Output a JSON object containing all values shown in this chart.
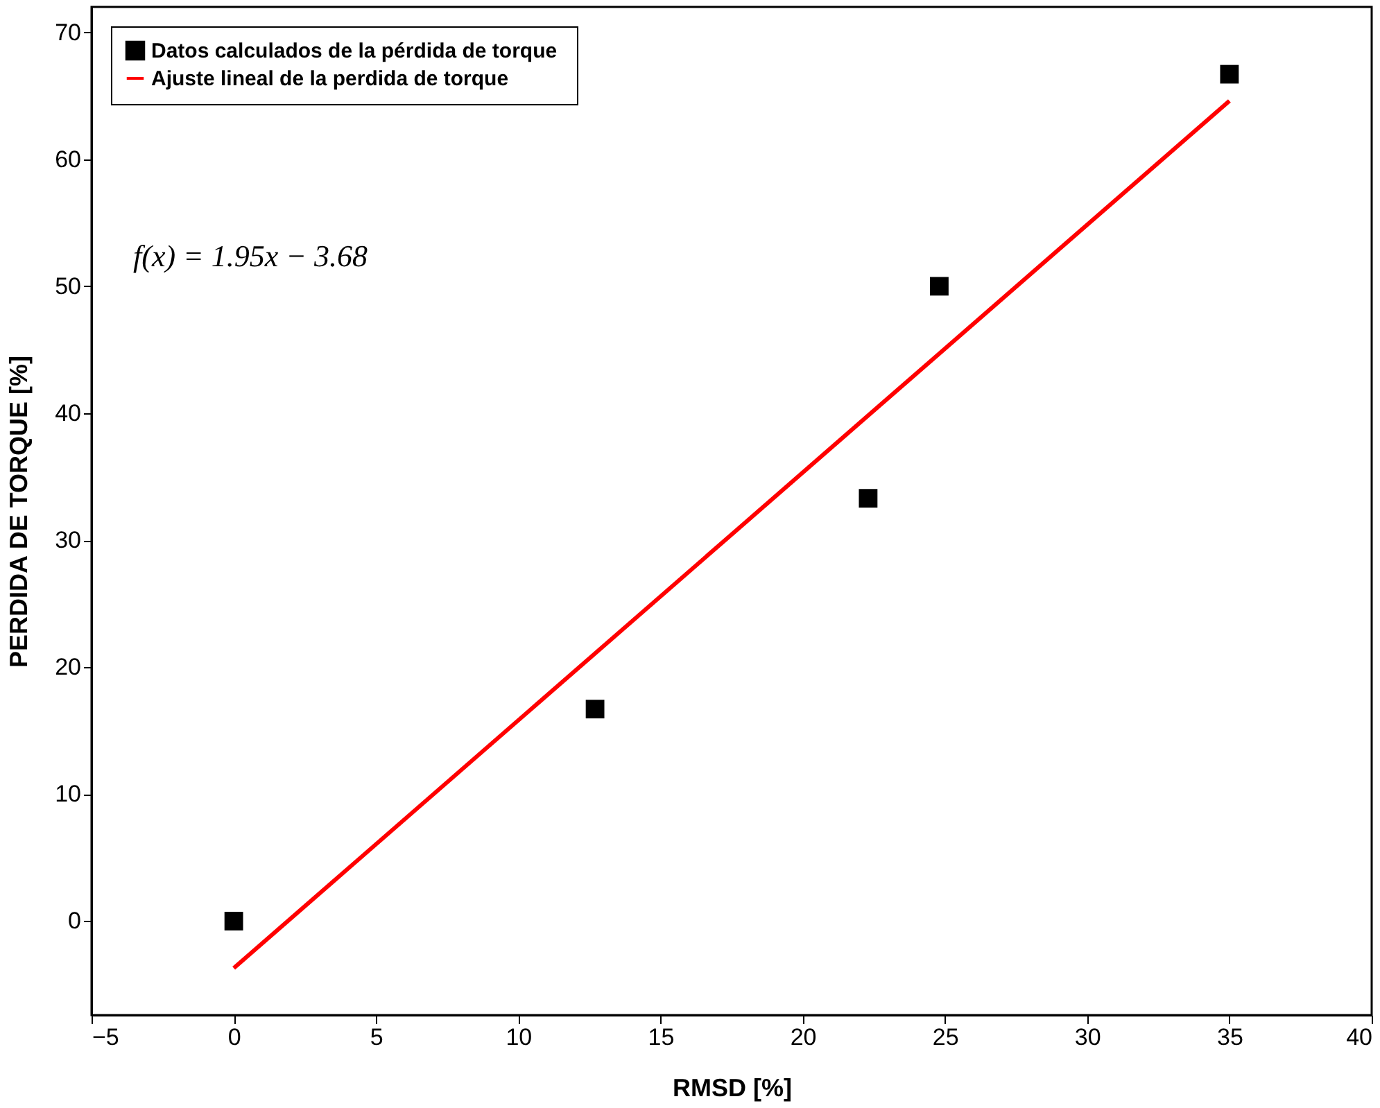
{
  "chart_data": {
    "type": "scatter",
    "xlabel": "RMSD [%]",
    "ylabel": "PERDIDA DE TORQUE  [%]",
    "xlim": [
      -5,
      40
    ],
    "ylim": [
      -7.4,
      72
    ],
    "xticks": [
      -5,
      0,
      5,
      10,
      15,
      20,
      25,
      30,
      35,
      40
    ],
    "yticks": [
      0,
      10,
      20,
      30,
      40,
      50,
      60,
      70
    ],
    "grid": false,
    "legend": "top left",
    "series": [
      {
        "name": "Datos calculados de  la pérdida de torque",
        "color": "#000000",
        "marker": "square",
        "x": [
          0,
          12.7,
          22.3,
          24.8,
          35
        ],
        "values": [
          0,
          16.7,
          33.3,
          50,
          66.7
        ]
      },
      {
        "name": "Ajuste lineal de la perdida de torque",
        "color": "#ff0000",
        "type": "line",
        "x": [
          0,
          35
        ],
        "values": [
          -3.7,
          64.6
        ],
        "line_style": "solid"
      }
    ],
    "annotations": [
      "f(x) = 1.95x − 3.68"
    ]
  }
}
